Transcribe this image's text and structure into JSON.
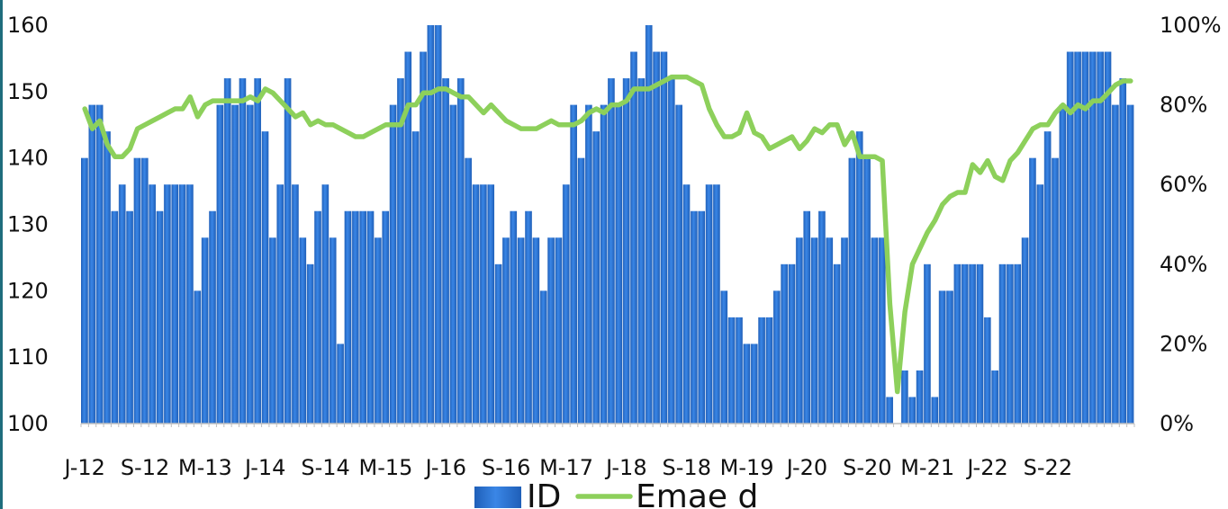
{
  "chart_data": {
    "type": "bar+line",
    "title": "",
    "xlabel": "",
    "ylabel": "",
    "ylim": [
      100,
      160
    ],
    "y2lim": [
      0,
      100
    ],
    "y_ticks": [
      "100",
      "110",
      "120",
      "130",
      "140",
      "150",
      "160"
    ],
    "y2_ticks": [
      "0%",
      "20%",
      "40%",
      "60%",
      "80%",
      "100%"
    ],
    "x_tick_labels": [
      "J-12",
      "S-12",
      "M-13",
      "J-14",
      "S-14",
      "M-15",
      "J-16",
      "S-16",
      "M-17",
      "J-18",
      "S-18",
      "M-19",
      "J-20",
      "S-20",
      "M-21",
      "J-22",
      "S-22"
    ],
    "legend": {
      "position": "bottom",
      "items": [
        {
          "name": "ID",
          "type": "bar"
        },
        {
          "name": "Emae d",
          "type": "line"
        }
      ]
    },
    "colors": {
      "bar": "#2a78d8",
      "bar_dark": "#1f5fb8",
      "line": "#8dd05b",
      "text": "#111111",
      "left_edge": "#1f6d7d"
    },
    "series": [
      {
        "name": "ID",
        "type": "bar",
        "axis": "left",
        "values": [
          140,
          148,
          148,
          144,
          132,
          136,
          132,
          140,
          140,
          136,
          132,
          136,
          136,
          136,
          136,
          120,
          128,
          132,
          148,
          152,
          148,
          152,
          148,
          152,
          144,
          128,
          136,
          152,
          136,
          128,
          124,
          132,
          136,
          128,
          112,
          132,
          132,
          132,
          132,
          128,
          132,
          148,
          152,
          156,
          144,
          156,
          160,
          160,
          152,
          148,
          152,
          140,
          136,
          136,
          136,
          124,
          128,
          132,
          128,
          132,
          128,
          120,
          128,
          128,
          136,
          148,
          140,
          148,
          144,
          148,
          152,
          148,
          152,
          156,
          152,
          160,
          156,
          156,
          152,
          148,
          136,
          132,
          132,
          136,
          136,
          120,
          116,
          116,
          112,
          112,
          116,
          116,
          120,
          124,
          124,
          128,
          132,
          128,
          132,
          128,
          124,
          128,
          140,
          144,
          140,
          128,
          128,
          104,
          100,
          108,
          104,
          108,
          124,
          104,
          120,
          120,
          124,
          124,
          124,
          124,
          116,
          108,
          124,
          124,
          124,
          128,
          140,
          136,
          144,
          140,
          148,
          156,
          156,
          156,
          156,
          156,
          156,
          148,
          152,
          148
        ]
      },
      {
        "name": "Emae d",
        "type": "line",
        "axis": "right",
        "values": [
          79,
          74,
          76,
          70,
          67,
          67,
          69,
          74,
          75,
          76,
          77,
          78,
          79,
          79,
          82,
          77,
          80,
          81,
          81,
          81,
          81,
          81,
          82,
          81,
          84,
          83,
          81,
          79,
          77,
          78,
          75,
          76,
          75,
          75,
          74,
          73,
          72,
          72,
          73,
          74,
          75,
          75,
          75,
          80,
          80,
          83,
          83,
          84,
          84,
          83,
          82,
          82,
          80,
          78,
          80,
          78,
          76,
          75,
          74,
          74,
          74,
          75,
          76,
          75,
          75,
          75,
          76,
          78,
          79,
          78,
          80,
          80,
          81,
          84,
          84,
          84,
          85,
          86,
          87,
          87,
          87,
          86,
          85,
          79,
          75,
          72,
          72,
          73,
          78,
          73,
          72,
          69,
          70,
          71,
          72,
          69,
          71,
          74,
          73,
          75,
          75,
          70,
          73,
          67,
          67,
          67,
          66,
          30,
          8,
          28,
          40,
          44,
          48,
          51,
          55,
          57,
          58,
          58,
          65,
          63,
          66,
          62,
          61,
          66,
          68,
          71,
          74,
          75,
          75,
          78,
          80,
          78,
          80,
          79,
          81,
          81,
          83,
          85,
          86,
          86
        ]
      }
    ]
  }
}
